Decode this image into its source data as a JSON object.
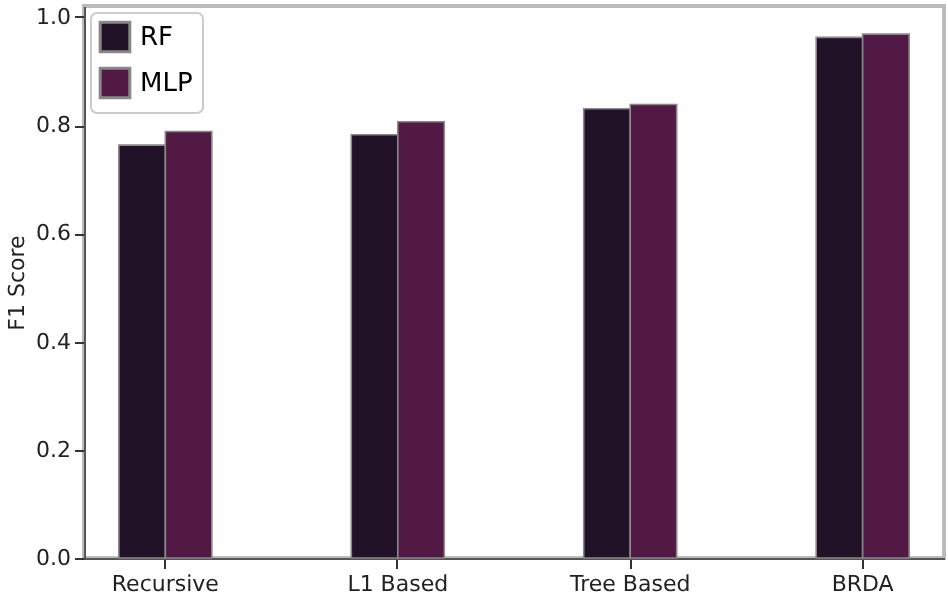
{
  "chart_data": {
    "type": "bar",
    "ylabel": "F1 Score",
    "categories": [
      "Recursive",
      "L1 Based",
      "Tree Based",
      "BRDA"
    ],
    "series": [
      {
        "name": "RF",
        "color": "#221228",
        "values": [
          0.763,
          0.782,
          0.83,
          0.962
        ]
      },
      {
        "name": "MLP",
        "color": "#521945",
        "values": [
          0.788,
          0.806,
          0.838,
          0.968
        ]
      }
    ],
    "ylim": [
      0,
      1.02
    ],
    "yticks": [
      {
        "value": 0,
        "label": "0.0"
      },
      0.2,
      0.4,
      0.6,
      0.8,
      {
        "value": 1,
        "label": "1.0"
      }
    ],
    "legend": "top left",
    "grid": false
  }
}
